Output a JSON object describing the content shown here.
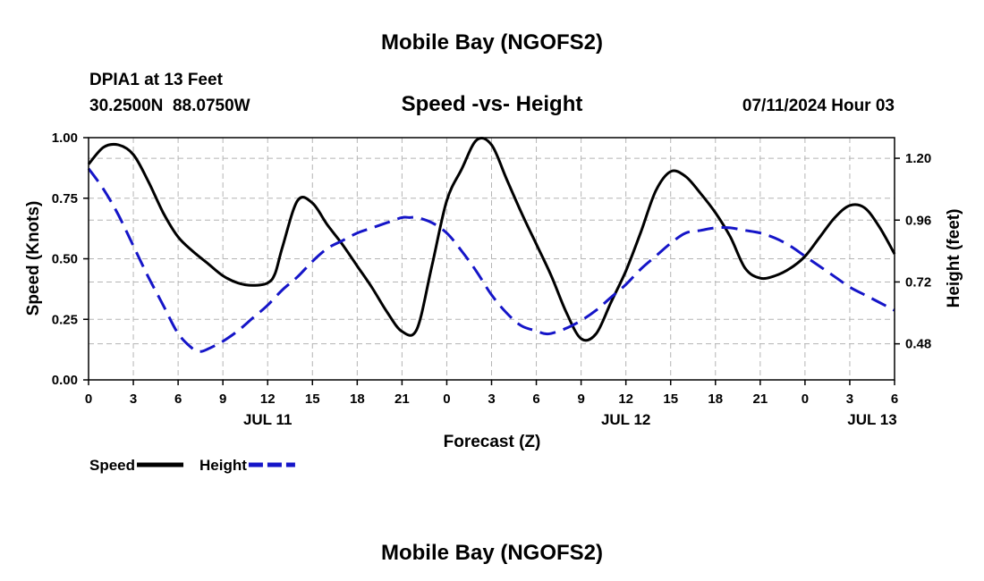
{
  "chart_data": {
    "type": "line",
    "title": "Mobile Bay (NGOFS2)",
    "footer_title": "Mobile Bay (NGOFS2)",
    "subtitle": "Speed -vs- Height",
    "station_line": "DPIA1 at 13 Feet",
    "coords_line": "30.2500N  88.0750W",
    "datetime_line": "07/11/2024 Hour 03",
    "xlabel": "Forecast (Z)",
    "ylabel_left": "Speed (Knots)",
    "ylabel_right": "Height (feet)",
    "x_unit": "hours since 2024-07-11 00Z",
    "xlim": [
      0,
      54
    ],
    "ylim_left": [
      0,
      1.0
    ],
    "ylim_right": [
      0.34,
      1.28
    ],
    "x_ticks": [
      0,
      3,
      6,
      9,
      12,
      15,
      18,
      21,
      24,
      27,
      30,
      33,
      36,
      39,
      42,
      45,
      48,
      51,
      54
    ],
    "x_tick_labels": [
      "0",
      "3",
      "6",
      "9",
      "12",
      "15",
      "18",
      "21",
      "0",
      "3",
      "6",
      "9",
      "12",
      "15",
      "18",
      "21",
      "0",
      "3",
      "6"
    ],
    "date_labels": [
      {
        "x": 12,
        "label": "JUL 11"
      },
      {
        "x": 36,
        "label": "JUL 12"
      },
      {
        "x": 52.5,
        "label": "JUL 13"
      }
    ],
    "y_ticks_left": [
      0.0,
      0.25,
      0.5,
      0.75,
      1.0
    ],
    "y_tick_labels_left": [
      "0.00",
      "0.25",
      "0.50",
      "0.75",
      "1.00"
    ],
    "y_ticks_right": [
      0.48,
      0.72,
      0.96,
      1.2
    ],
    "y_tick_labels_right": [
      "0.48",
      "0.72",
      "0.96",
      "1.20"
    ],
    "grid": true,
    "legend": [
      {
        "name": "Speed",
        "color": "#000000",
        "style": "solid"
      },
      {
        "name": "Height",
        "color": "#1515c8",
        "style": "dashed"
      }
    ],
    "series": [
      {
        "name": "Speed",
        "axis": "left",
        "color": "#000000",
        "style": "solid",
        "x": [
          0,
          1,
          2,
          3,
          4,
          5,
          6,
          7,
          8,
          9,
          10,
          11,
          12,
          12.5,
          13,
          14,
          15,
          16,
          17,
          18,
          19,
          20,
          21,
          22,
          23,
          24,
          25,
          26,
          27,
          28,
          29,
          30,
          31,
          32,
          33,
          34,
          35,
          36,
          37,
          38,
          39,
          40,
          41,
          42,
          43,
          44,
          45,
          46,
          47,
          48,
          49,
          50,
          51,
          52,
          53,
          54
        ],
        "values": [
          0.89,
          0.96,
          0.97,
          0.93,
          0.82,
          0.69,
          0.59,
          0.53,
          0.48,
          0.43,
          0.4,
          0.39,
          0.4,
          0.44,
          0.55,
          0.74,
          0.73,
          0.64,
          0.56,
          0.47,
          0.38,
          0.28,
          0.2,
          0.21,
          0.47,
          0.74,
          0.87,
          0.99,
          0.97,
          0.83,
          0.69,
          0.56,
          0.43,
          0.28,
          0.17,
          0.19,
          0.32,
          0.45,
          0.61,
          0.78,
          0.86,
          0.84,
          0.77,
          0.69,
          0.59,
          0.46,
          0.42,
          0.43,
          0.46,
          0.51,
          0.59,
          0.67,
          0.72,
          0.71,
          0.63,
          0.52
        ]
      },
      {
        "name": "Height",
        "axis": "right",
        "color": "#1515c8",
        "style": "dashed",
        "x": [
          0,
          1,
          2,
          3,
          4,
          5,
          6,
          7,
          7.5,
          8,
          9,
          10,
          11,
          12,
          13,
          14,
          15,
          16,
          17,
          18,
          19,
          20,
          21,
          21.5,
          22,
          23,
          24,
          25,
          26,
          27,
          28,
          29,
          30,
          30.5,
          31,
          32,
          33,
          34,
          35,
          36,
          37,
          38,
          39,
          40,
          41,
          42,
          43,
          44,
          45,
          46,
          47,
          48,
          49,
          50,
          51,
          52,
          53,
          54
        ],
        "values": [
          1.16,
          1.08,
          0.98,
          0.86,
          0.74,
          0.63,
          0.52,
          0.46,
          0.45,
          0.46,
          0.49,
          0.53,
          0.58,
          0.63,
          0.69,
          0.74,
          0.8,
          0.85,
          0.88,
          0.91,
          0.93,
          0.95,
          0.97,
          0.97,
          0.97,
          0.95,
          0.91,
          0.84,
          0.76,
          0.67,
          0.6,
          0.55,
          0.53,
          0.52,
          0.52,
          0.54,
          0.57,
          0.61,
          0.66,
          0.71,
          0.77,
          0.82,
          0.87,
          0.91,
          0.92,
          0.93,
          0.93,
          0.92,
          0.91,
          0.89,
          0.86,
          0.82,
          0.78,
          0.74,
          0.7,
          0.67,
          0.64,
          0.61
        ]
      }
    ]
  }
}
